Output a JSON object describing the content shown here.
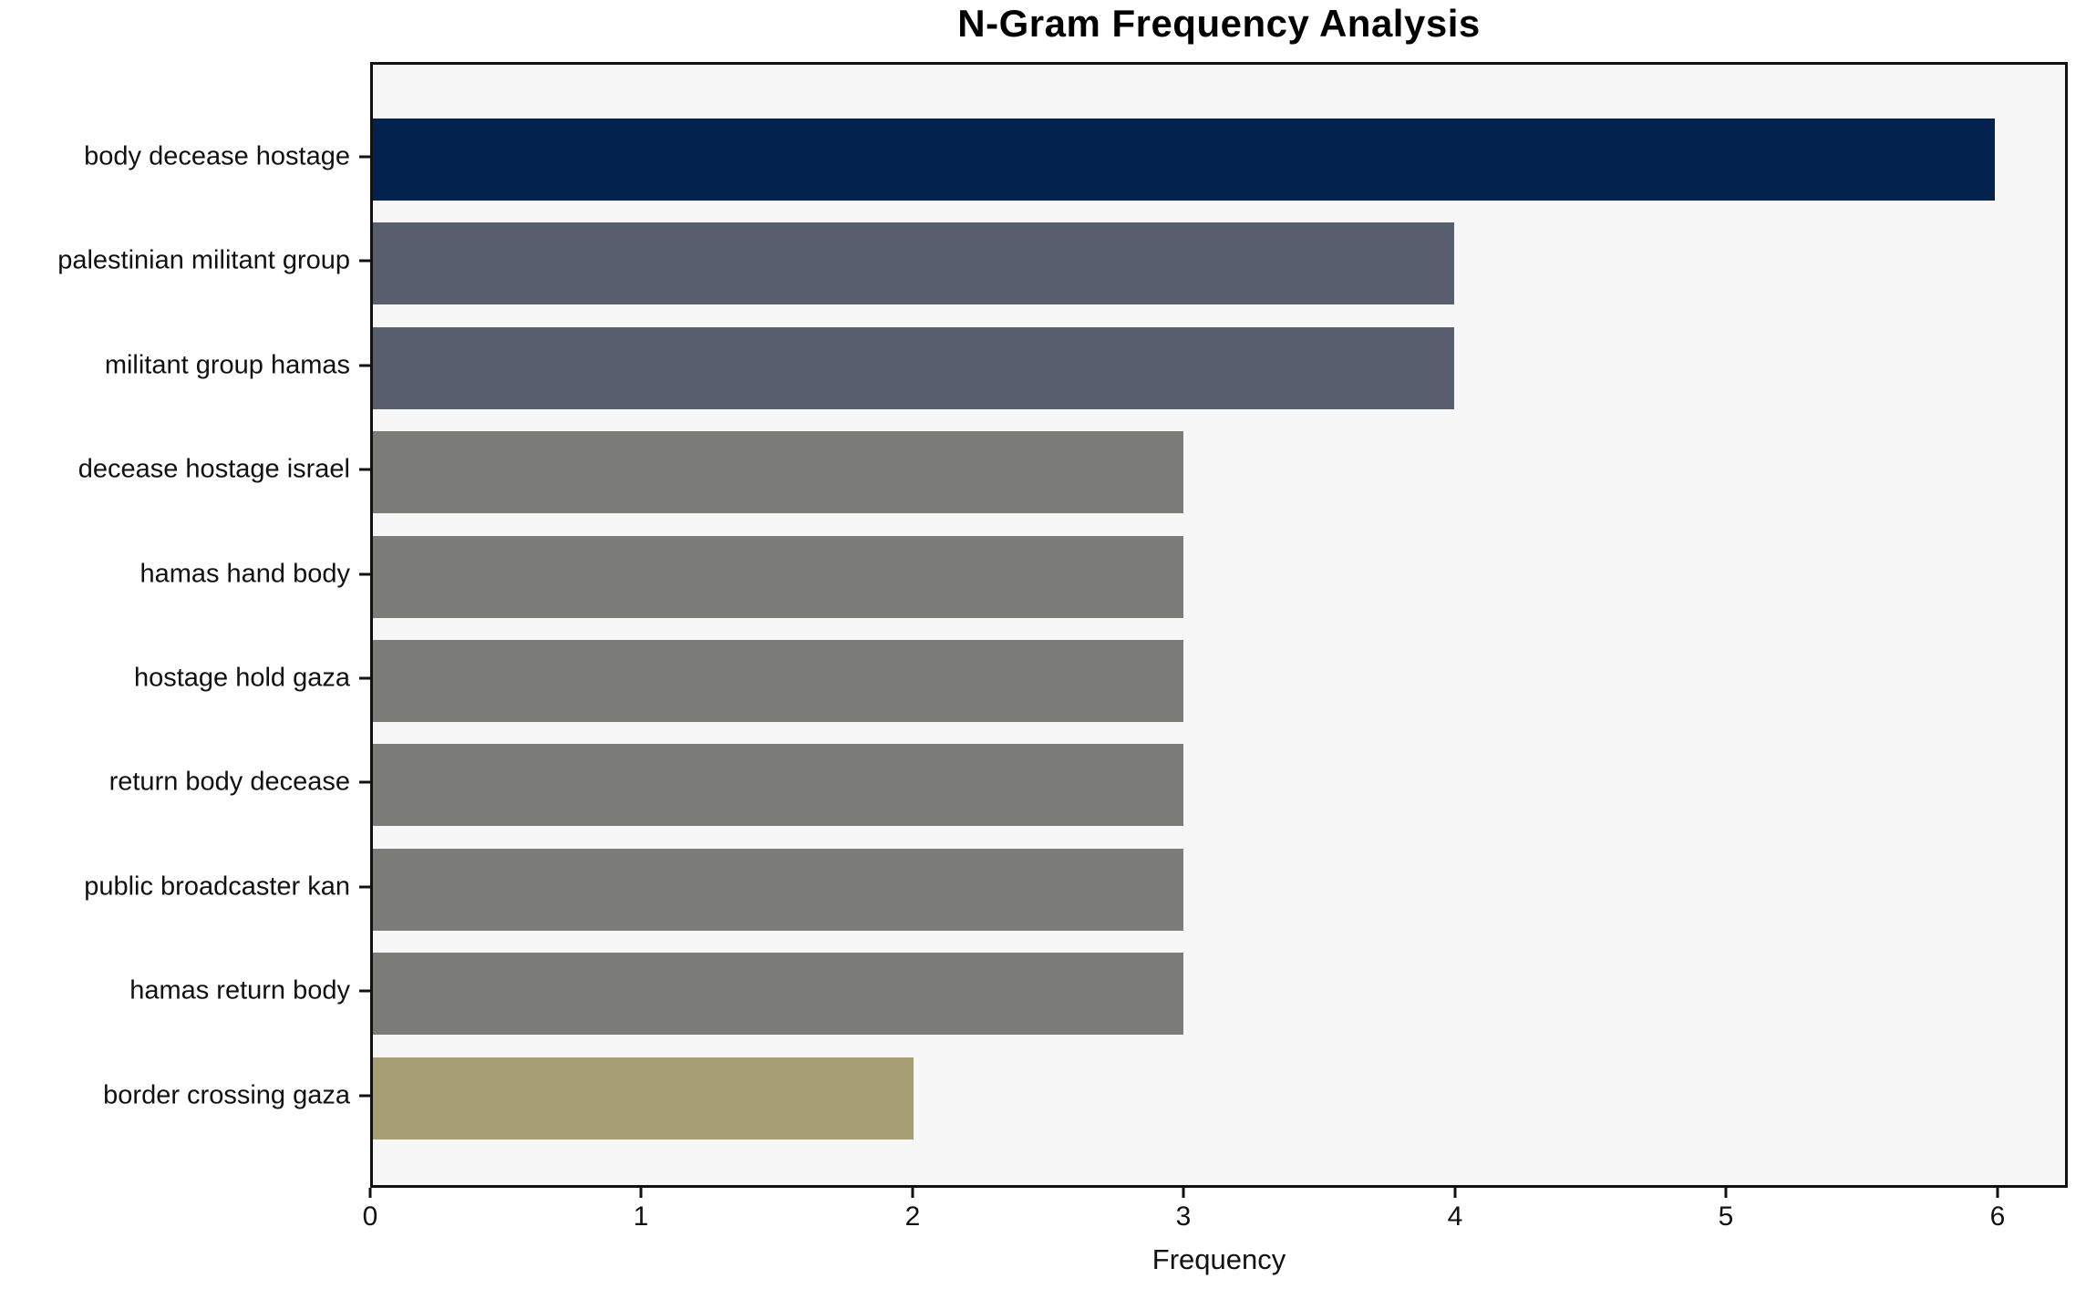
{
  "chart_data": {
    "type": "bar",
    "orientation": "horizontal",
    "title": "N-Gram Frequency Analysis",
    "xlabel": "Frequency",
    "ylabel": "",
    "categories": [
      "body decease hostage",
      "palestinian militant group",
      "militant group hamas",
      "decease hostage israel",
      "hamas hand body",
      "hostage hold gaza",
      "return body decease",
      "public broadcaster kan",
      "hamas return body",
      "border crossing gaza"
    ],
    "values": [
      6,
      4,
      4,
      3,
      3,
      3,
      3,
      3,
      3,
      2
    ],
    "bar_colors": [
      "#03224e",
      "#575e6e",
      "#575e6e",
      "#7b7b77",
      "#7b7b77",
      "#7b7b77",
      "#7b7b77",
      "#7b7b77",
      "#7b7b77",
      "#a69d72"
    ],
    "xticks": [
      0,
      1,
      2,
      3,
      4,
      5,
      6
    ],
    "xlim": [
      0,
      6.26
    ],
    "grid": false,
    "legend": null,
    "plot_background": "#f7f7f8",
    "figure_background": "#ffffff",
    "spine_color": "#111111"
  }
}
